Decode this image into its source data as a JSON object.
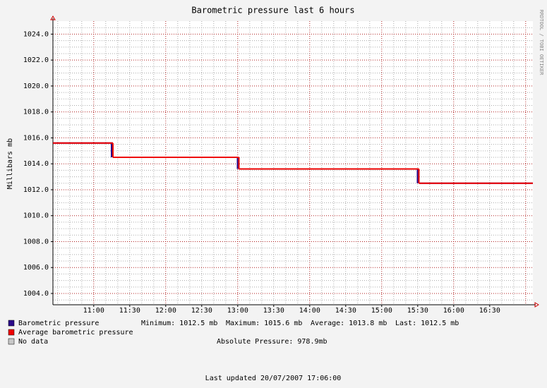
{
  "chart_data": {
    "type": "step-line",
    "title": "Barometric pressure last 6 hours",
    "y_label": "Millibars  mb",
    "side_label": "RRDTOOL / TOBI OETIKER",
    "x": [
      "10:26",
      "11:16",
      "13:01",
      "15:31"
    ],
    "xlim": [
      "10:26",
      "17:06"
    ],
    "xticks": [
      "11:00",
      "11:30",
      "12:00",
      "12:30",
      "13:00",
      "13:30",
      "14:00",
      "14:30",
      "15:00",
      "15:30",
      "16:00",
      "16:30"
    ],
    "ylim": [
      1003.13,
      1025.0
    ],
    "yticks": [
      {
        "value": 1004,
        "label": "1004.0"
      },
      {
        "value": 1006,
        "label": "1006.0"
      },
      {
        "value": 1008,
        "label": "1008.0"
      },
      {
        "value": 1010,
        "label": "1010.0"
      },
      {
        "value": 1012,
        "label": "1012.0"
      },
      {
        "value": 1014,
        "label": "1014.0"
      },
      {
        "value": 1016,
        "label": "1016.0"
      },
      {
        "value": 1018,
        "label": "1018.0"
      },
      {
        "value": 1020,
        "label": "1020.0"
      },
      {
        "value": 1022,
        "label": "1022.0"
      },
      {
        "value": 1024,
        "label": "1024.0"
      }
    ],
    "grid": true,
    "series": [
      {
        "name": "Barometric pressure",
        "color": "#2a0a8a",
        "values": [
          1015.6,
          1014.5,
          1013.6,
          1012.5
        ]
      },
      {
        "name": "Average barometric pressure",
        "color": "#ee0000",
        "values": [
          1015.6,
          1014.5,
          1013.6,
          1012.5
        ]
      }
    ],
    "no_data": {
      "name": "No data",
      "color": "#c8c8c8"
    },
    "stats": [
      "Minimum: 1012.5 mb",
      "Maximum: 1015.6 mb",
      "Average: 1013.8 mb",
      "Last: 1012.5 mb"
    ],
    "absolute": "Absolute Pressure:  978.9mb",
    "footer": "Last updated 20/07/2007 17:06:00"
  }
}
